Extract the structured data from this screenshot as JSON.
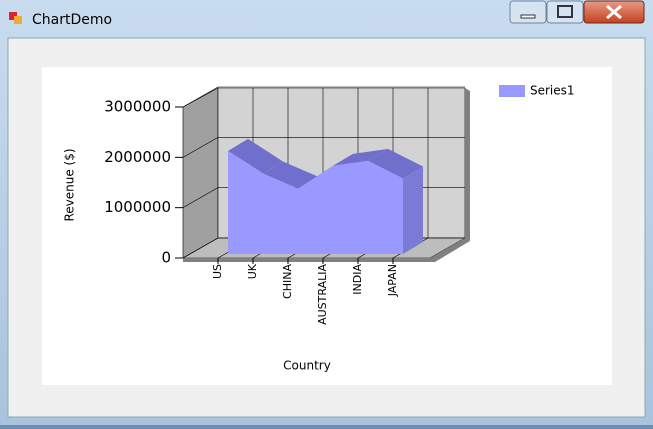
{
  "window": {
    "title": "ChartDemo"
  },
  "chart_data": {
    "type": "area3d",
    "x_label": "Country",
    "y_label": "Revenue ($)",
    "categories": [
      "US",
      "UK",
      "CHINA",
      "AUSTRALIA",
      "INDIA",
      "JAPAN"
    ],
    "series": [
      {
        "name": "Series1",
        "color": "#9999ff",
        "values": [
          2050000,
          1600000,
          1300000,
          1750000,
          1850000,
          1500000
        ]
      }
    ],
    "ylim": [
      0,
      3000000
    ],
    "yticks": [
      0,
      1000000,
      2000000,
      3000000
    ],
    "grid": true,
    "legend": "top-right"
  }
}
